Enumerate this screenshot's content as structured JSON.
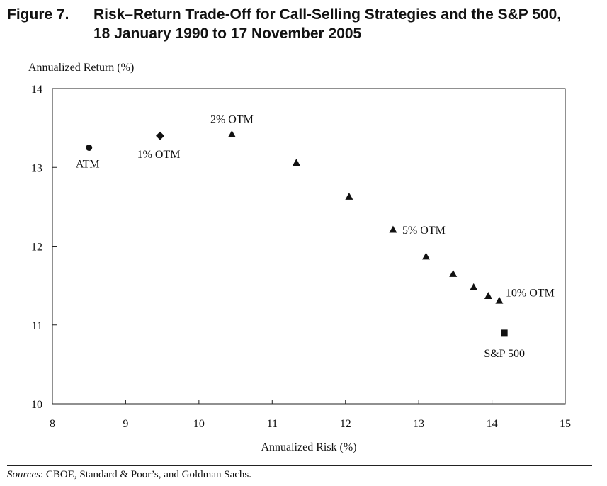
{
  "figure": {
    "number": "Figure 7.",
    "title_line1": "Risk–Return Trade-Off for Call-Selling Strategies and the S&P 500,",
    "title_line2": "18 January 1990 to 17 November 2005"
  },
  "sources": {
    "prefix": "Sources",
    "text": ": CBOE, Standard & Poor’s, and Goldman Sachs."
  },
  "chart_data": {
    "type": "scatter",
    "xlabel": "Annualized Risk (%)",
    "ylabel": "Annualized Return (%)",
    "xlim": [
      8,
      15
    ],
    "ylim": [
      10,
      14
    ],
    "xticks": [
      8,
      9,
      10,
      11,
      12,
      13,
      14,
      15
    ],
    "yticks": [
      10,
      11,
      12,
      13,
      14
    ],
    "grid": false,
    "points": [
      {
        "x": 8.5,
        "y": 13.25,
        "marker": "circle",
        "label": "ATM"
      },
      {
        "x": 9.47,
        "y": 13.4,
        "marker": "diamond",
        "label": "1% OTM"
      },
      {
        "x": 10.45,
        "y": 13.42,
        "marker": "triangle",
        "label": "2% OTM"
      },
      {
        "x": 11.33,
        "y": 13.06,
        "marker": "triangle",
        "label": ""
      },
      {
        "x": 12.05,
        "y": 12.63,
        "marker": "triangle",
        "label": ""
      },
      {
        "x": 12.65,
        "y": 12.21,
        "marker": "triangle",
        "label": "5% OTM"
      },
      {
        "x": 13.1,
        "y": 11.87,
        "marker": "triangle",
        "label": ""
      },
      {
        "x": 13.47,
        "y": 11.65,
        "marker": "triangle",
        "label": ""
      },
      {
        "x": 13.75,
        "y": 11.48,
        "marker": "triangle",
        "label": ""
      },
      {
        "x": 13.95,
        "y": 11.37,
        "marker": "triangle",
        "label": ""
      },
      {
        "x": 14.1,
        "y": 11.31,
        "marker": "triangle",
        "label": "10% OTM"
      },
      {
        "x": 14.17,
        "y": 10.9,
        "marker": "square",
        "label": "S&P 500"
      }
    ]
  }
}
